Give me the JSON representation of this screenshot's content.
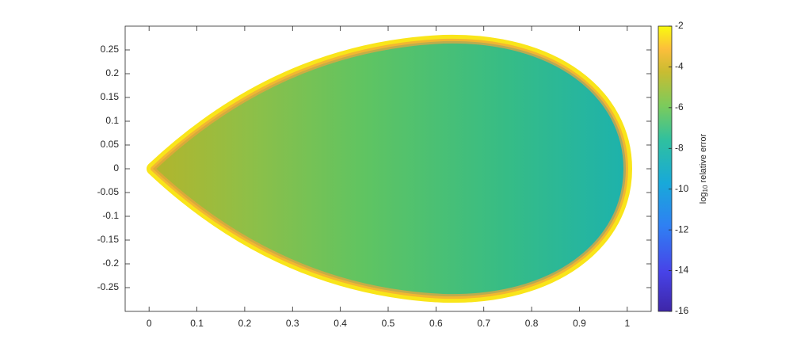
{
  "chart_data": {
    "type": "heatmap",
    "xlim": [
      -0.05,
      1.05
    ],
    "xticks": [
      0,
      0.1,
      0.2,
      0.3,
      0.4,
      0.5,
      0.6,
      0.7,
      0.8,
      0.9,
      1
    ],
    "ylim": [
      -0.3,
      0.3
    ],
    "yticks": [
      -0.25,
      -0.2,
      -0.15,
      -0.1,
      -0.05,
      0,
      0.05,
      0.1,
      0.15,
      0.2,
      0.25
    ],
    "colorbar": {
      "clim": [
        -16,
        -2
      ],
      "ticks": [
        -16,
        -14,
        -12,
        -10,
        -8,
        -6,
        -4,
        -2
      ],
      "label": {
        "base": "log",
        "subscript": "10",
        "text": " relative error"
      }
    }
  }
}
